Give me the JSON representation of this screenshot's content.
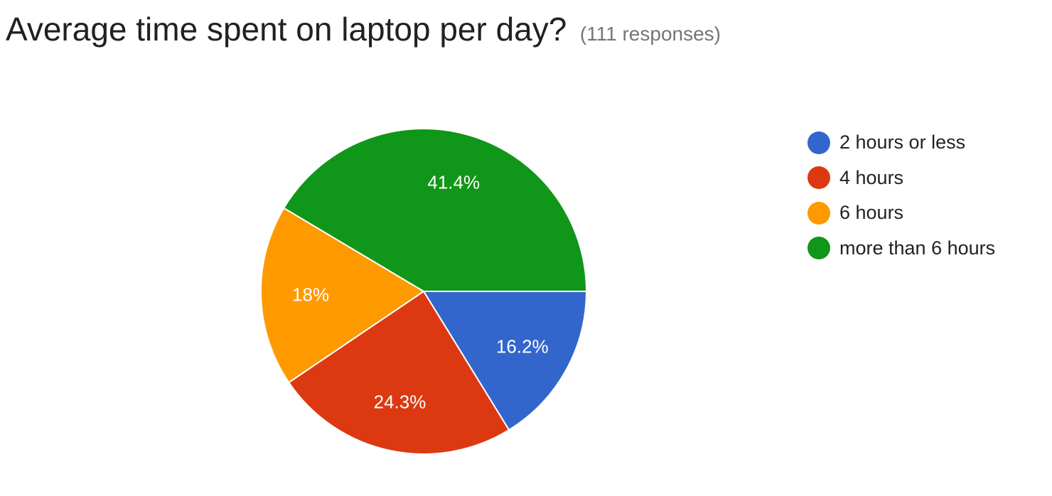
{
  "header": {
    "title": "Average time spent on laptop per day?",
    "responses": "(111 responses)"
  },
  "chart_data": {
    "type": "pie",
    "title": "Average time spent on laptop per day?",
    "categories": [
      "2 hours or less",
      "4 hours",
      "6 hours",
      "more than 6 hours"
    ],
    "values": [
      16.2,
      24.3,
      18,
      41.4
    ],
    "value_labels": [
      "16.2%",
      "24.3%",
      "18%",
      "41.4%"
    ],
    "colors": [
      "#3366cc",
      "#dc3912",
      "#ff9900",
      "#109618"
    ],
    "legend_position": "right"
  }
}
